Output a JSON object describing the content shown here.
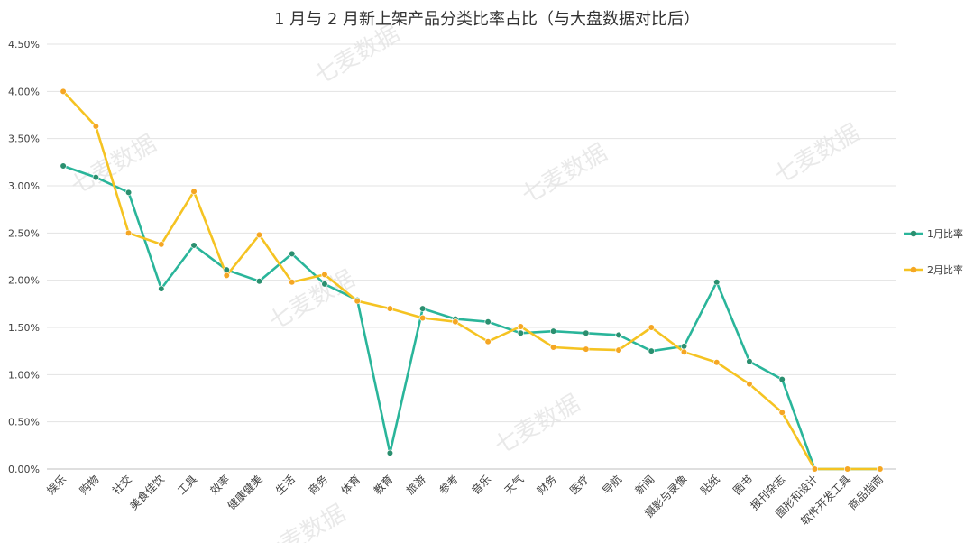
{
  "chart_data": {
    "type": "line",
    "title": "1 月与 2 月新上架产品分类比率占比（与大盘数据对比后）",
    "xlabel": "",
    "ylabel": "",
    "ylim": [
      0,
      0.045
    ],
    "ytick_labels": [
      "0.00%",
      "0.50%",
      "1.00%",
      "1.50%",
      "2.00%",
      "2.50%",
      "3.00%",
      "3.50%",
      "4.00%",
      "4.50%"
    ],
    "grid": true,
    "legend_position": "right",
    "categories": [
      "娱乐",
      "购物",
      "社交",
      "美食佳饮",
      "工具",
      "效率",
      "健康健美",
      "生活",
      "商务",
      "体育",
      "教育",
      "旅游",
      "参考",
      "音乐",
      "天气",
      "财务",
      "医疗",
      "导航",
      "新闻",
      "摄影与录像",
      "贴纸",
      "图书",
      "报刊杂志",
      "图形和设计",
      "软件开发工具",
      "商品指南"
    ],
    "series": [
      {
        "name": "1月比率",
        "color": "#2ab59a",
        "marker_color": "#2a8f6f",
        "values": [
          0.0321,
          0.0309,
          0.0293,
          0.0191,
          0.0237,
          0.0211,
          0.0199,
          0.0228,
          0.0196,
          0.0179,
          0.0017,
          0.017,
          0.0159,
          0.0156,
          0.0144,
          0.0146,
          0.0144,
          0.0142,
          0.0125,
          0.013,
          0.0198,
          0.0114,
          0.0095,
          0.0,
          0.0,
          0.0
        ]
      },
      {
        "name": "2月比率",
        "color": "#f5c322",
        "marker_color": "#f5a623",
        "values": [
          0.04,
          0.0363,
          0.025,
          0.0238,
          0.0294,
          0.0205,
          0.0248,
          0.0198,
          0.0206,
          0.0178,
          0.017,
          0.016,
          0.0156,
          0.0135,
          0.0151,
          0.0129,
          0.0127,
          0.0126,
          0.015,
          0.0124,
          0.0113,
          0.009,
          0.006,
          0.0,
          0.0,
          0.0
        ]
      }
    ],
    "watermark": "七麦数据"
  }
}
